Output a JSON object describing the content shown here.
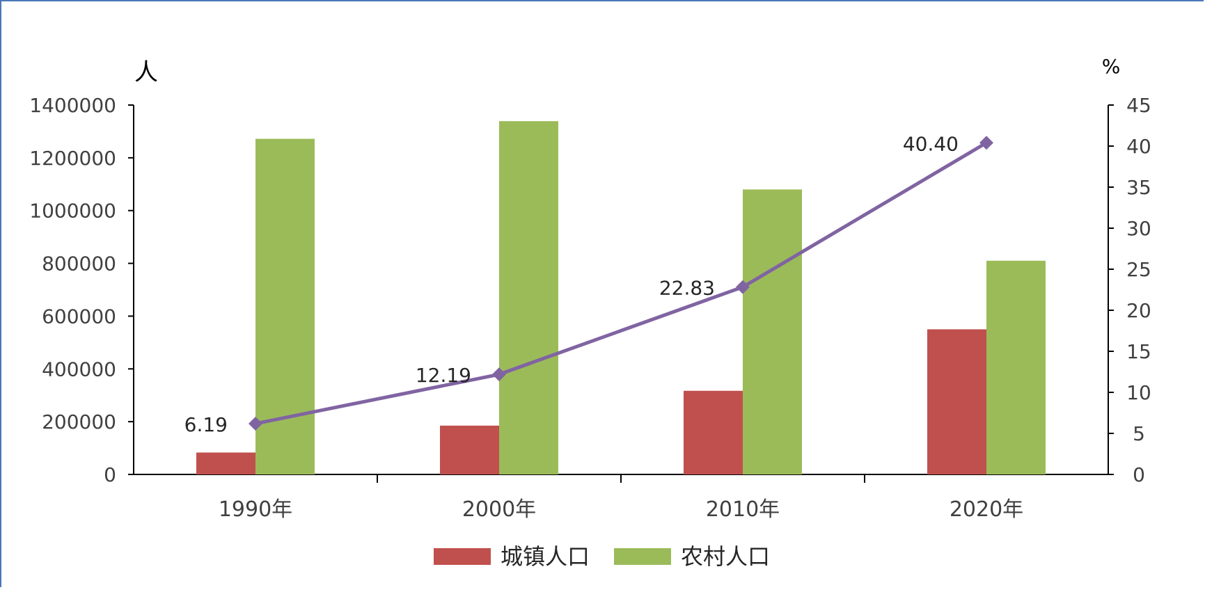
{
  "chart_data": {
    "type": "bar",
    "categories": [
      "1990年",
      "2000年",
      "2010年",
      "2020年"
    ],
    "series": [
      {
        "name": "城镇人口",
        "type": "bar",
        "axis": "left",
        "color": "#c0504d",
        "values": [
          83000,
          185000,
          317000,
          550000
        ]
      },
      {
        "name": "农村人口",
        "type": "bar",
        "axis": "left",
        "color": "#9bbb59",
        "values": [
          1272000,
          1339000,
          1080000,
          810000
        ]
      },
      {
        "type": "line",
        "axis": "right",
        "color": "#8064a2",
        "marker": "diamond",
        "values": [
          6.19,
          12.19,
          22.83,
          40.4
        ],
        "labels": [
          "6.19",
          "12.19",
          "22.83",
          "40.40"
        ]
      }
    ],
    "y_left": {
      "unit": "人",
      "ylim": [
        0,
        1400000
      ],
      "ticks": [
        "0",
        "200000",
        "400000",
        "600000",
        "800000",
        "1000000",
        "1200000",
        "1400000"
      ]
    },
    "y_right": {
      "unit": "%",
      "ylim": [
        0,
        45
      ],
      "ticks": [
        "0",
        "5",
        "10",
        "15",
        "20",
        "25",
        "30",
        "35",
        "40",
        "45"
      ]
    },
    "legend": {
      "placement": "bottom",
      "entries": [
        "城镇人口",
        "农村人口"
      ]
    },
    "grid": false
  }
}
